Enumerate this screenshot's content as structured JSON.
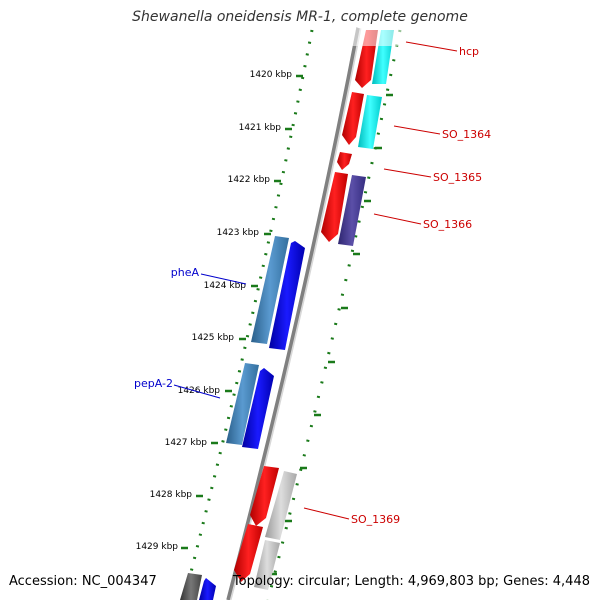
{
  "title": "Shewanella oneidensis MR-1, complete genome",
  "accession_text": "Accession: NC_004347",
  "topology_text": "Topology: circular; Length: 4,969,803 bp; Genes: 4,448",
  "colors": {
    "backbone": "#808080",
    "ticks": "#1a7a1a",
    "forward_label": "#cc0000",
    "reverse_label": "#0000cc",
    "gene_red": "#ff0000",
    "gene_cyan": "#00ffff",
    "gene_blue": "#0000ff",
    "gene_steel": "#4682b4",
    "gene_navy": "#483d8b",
    "gene_gray": "#bbbbbb",
    "gene_dark": "#555555"
  },
  "kbp_labels": [
    "1420 kbp",
    "1421 kbp",
    "1422 kbp",
    "1423 kbp",
    "1424 kbp",
    "1425 kbp",
    "1426 kbp",
    "1427 kbp",
    "1428 kbp",
    "1429 kbp"
  ],
  "gene_labels": {
    "forward": [
      "hcp",
      "SO_1364",
      "SO_1365",
      "SO_1366",
      "SO_1369"
    ],
    "reverse": [
      "pheA",
      "pepA-2"
    ]
  }
}
